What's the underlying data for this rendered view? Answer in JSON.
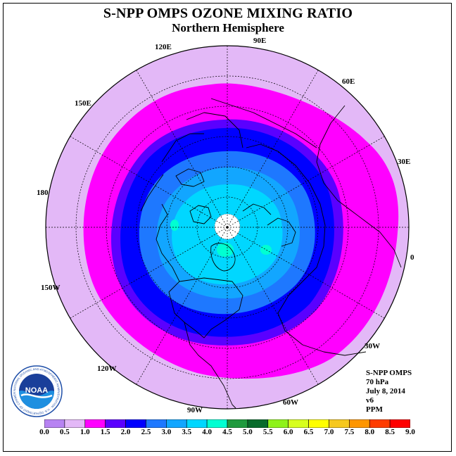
{
  "title": "S-NPP OMPS OZONE MIXING RATIO",
  "subtitle": "Northern Hemisphere",
  "longitude_labels": [
    "90E",
    "60E",
    "30E",
    "0",
    "30W",
    "60W",
    "90W",
    "120W",
    "150W",
    "180",
    "150E",
    "120E"
  ],
  "info": {
    "instrument": "S-NPP OMPS",
    "level": "70 hPa",
    "date": "July 8, 2014",
    "version": "v6",
    "units": "PPM"
  },
  "logo": {
    "text": "NOAA",
    "ring_text": "NATIONAL OCEANIC AND ATMOSPHERIC ADMINISTRATION · U.S. DEPARTMENT OF COMMERCE"
  },
  "colorbar": {
    "ticks": [
      "0.0",
      "0.5",
      "1.0",
      "1.5",
      "2.0",
      "2.5",
      "3.0",
      "3.5",
      "4.0",
      "4.5",
      "5.0",
      "5.5",
      "6.0",
      "6.5",
      "7.0",
      "7.5",
      "8.0",
      "8.5",
      "9.0"
    ],
    "colors": [
      "#b783f2",
      "#e3b8f7",
      "#ff00ff",
      "#5a00ff",
      "#0000ff",
      "#1e78ff",
      "#12a6ff",
      "#00d7ff",
      "#00ffd2",
      "#1f9a3e",
      "#076b2b",
      "#8ef21a",
      "#d7ff1e",
      "#ffff00",
      "#f6c81e",
      "#ff9600",
      "#ff3c00",
      "#ff0000",
      "#8f4f35"
    ]
  }
}
